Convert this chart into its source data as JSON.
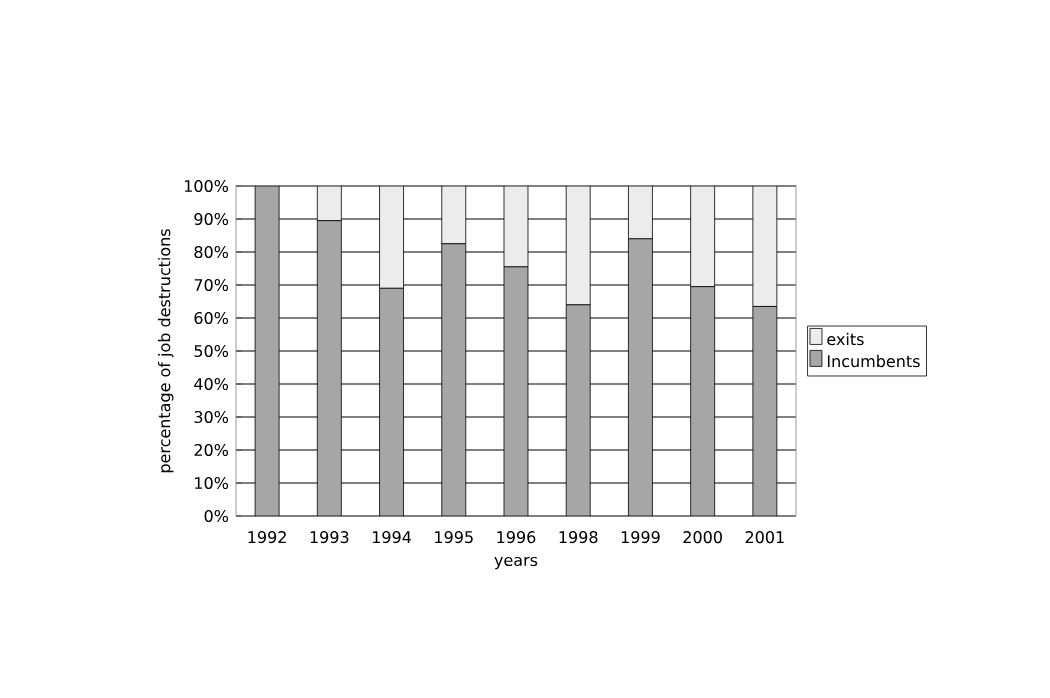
{
  "chart_data": {
    "type": "bar",
    "stacked": true,
    "xlabel": "years",
    "ylabel": "percentage of job destructions",
    "categories": [
      "1992",
      "1993",
      "1994",
      "1995",
      "1996",
      "1998",
      "1999",
      "2000",
      "2001"
    ],
    "series": [
      {
        "name": "Incumbents",
        "color": "#a6a6a6",
        "values": [
          100,
          89.5,
          69,
          82.5,
          75.5,
          64,
          84,
          69.5,
          63.5
        ]
      },
      {
        "name": "exits",
        "color": "#ececec",
        "values": [
          0,
          10.5,
          31,
          17.5,
          24.5,
          36,
          16,
          30.5,
          36.5
        ]
      }
    ],
    "ylim": [
      0,
      100
    ],
    "yticks": [
      {
        "value": 0,
        "label": "0%"
      },
      {
        "value": 10,
        "label": "10%"
      },
      {
        "value": 20,
        "label": "20%"
      },
      {
        "value": 30,
        "label": "30%"
      },
      {
        "value": 40,
        "label": "40%"
      },
      {
        "value": 50,
        "label": "50%"
      },
      {
        "value": 60,
        "label": "60%"
      },
      {
        "value": 70,
        "label": "70%"
      },
      {
        "value": 80,
        "label": "80%"
      },
      {
        "value": 90,
        "label": "90%"
      },
      {
        "value": 100,
        "label": "100%"
      }
    ],
    "grid": "y",
    "legend": "right"
  }
}
